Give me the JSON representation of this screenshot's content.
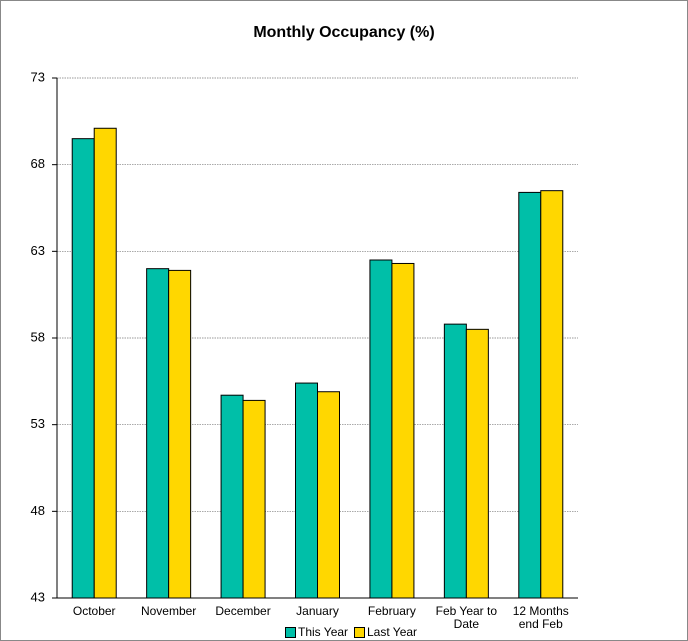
{
  "chart_data": {
    "type": "bar",
    "title": "Monthly Occupancy (%)",
    "categories": [
      "October",
      "November",
      "December",
      "January",
      "February",
      "Feb Year to Date",
      "12 Months end Feb"
    ],
    "series": [
      {
        "name": "This Year",
        "color": "#00bfa8",
        "values": [
          69.5,
          62.0,
          54.7,
          55.4,
          62.5,
          58.8,
          66.4
        ]
      },
      {
        "name": "Last Year",
        "color": "#ffd700",
        "values": [
          70.1,
          61.9,
          54.4,
          54.9,
          62.3,
          58.5,
          66.5
        ]
      }
    ],
    "ylim": [
      43,
      73
    ],
    "yticks": [
      43,
      48,
      53,
      58,
      63,
      68,
      73
    ],
    "grid": true,
    "legend": "bottom"
  }
}
